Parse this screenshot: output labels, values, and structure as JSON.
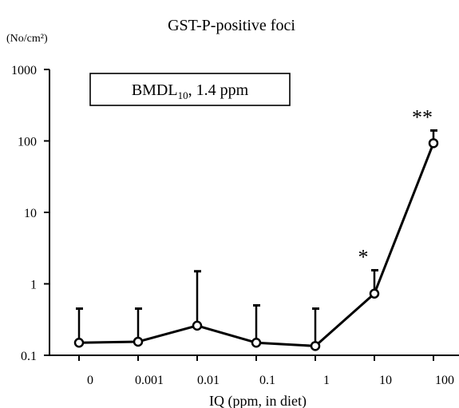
{
  "chart_data": {
    "type": "line",
    "title": "GST-P-positive foci",
    "y_unit_label": "(No/cm²)",
    "xlabel": "IQ (ppm, in diet)",
    "ylabel": "",
    "y_scale": "log",
    "ylim": [
      0.1,
      1000
    ],
    "y_ticks": [
      "0.1",
      "1",
      "10",
      "100",
      "1000"
    ],
    "categories": [
      "0",
      "0.001",
      "0.01",
      "0.1",
      "1",
      "10",
      "100"
    ],
    "series": [
      {
        "values": [
          0.15,
          0.155,
          0.26,
          0.15,
          0.135,
          0.73,
          93
        ],
        "error_upper": [
          0.45,
          0.45,
          1.5,
          0.5,
          0.45,
          1.55,
          140
        ]
      }
    ],
    "annotations": [
      {
        "text": "*",
        "category": "10"
      },
      {
        "text": "**",
        "category": "100"
      }
    ],
    "box": {
      "main": "BMDL",
      "sub": "10",
      "rest": ", 1.4 ppm"
    },
    "grid": false,
    "legend": "none",
    "colors": {
      "line": "#000000",
      "marker_fill": "#ffffff",
      "text": "#000000"
    }
  }
}
